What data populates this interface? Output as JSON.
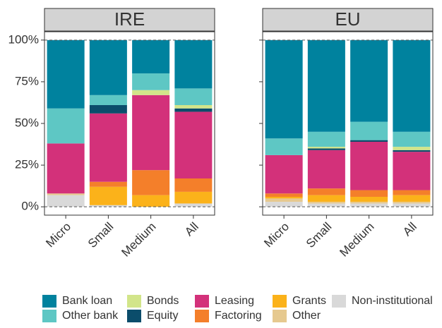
{
  "chart_data": {
    "type": "stacked_bar",
    "facets": [
      "IRE",
      "EU"
    ],
    "categories": [
      "Micro",
      "Small",
      "Medium",
      "All"
    ],
    "ylim": [
      -5,
      105
    ],
    "yticks": [
      {
        "value": 0,
        "label": "0%"
      },
      {
        "value": 25,
        "label": "25%"
      },
      {
        "value": 50,
        "label": "50%"
      },
      {
        "value": 75,
        "label": "75%"
      },
      {
        "value": 100,
        "label": "100%"
      }
    ],
    "hlines": [
      0,
      100
    ],
    "series": [
      {
        "name": "Non-institutional",
        "color": "#d9d9d9",
        "values": [
          [
            7,
            1,
            0,
            2
          ],
          [
            3,
            2,
            2,
            2
          ]
        ]
      },
      {
        "name": "Other",
        "color": "#e6c98f",
        "values": [
          [
            1,
            0,
            0,
            0
          ],
          [
            2,
            1,
            1,
            1
          ]
        ]
      },
      {
        "name": "Grants",
        "color": "#fbb21a",
        "values": [
          [
            0,
            11,
            7,
            7
          ],
          [
            1,
            4,
            3,
            4
          ]
        ]
      },
      {
        "name": "Factoring",
        "color": "#f47f2a",
        "values": [
          [
            0,
            3,
            15,
            8
          ],
          [
            2,
            4,
            4,
            3
          ]
        ]
      },
      {
        "name": "Leasing",
        "color": "#d3317a",
        "values": [
          [
            30,
            41,
            45,
            40
          ],
          [
            23,
            23,
            29,
            23
          ]
        ]
      },
      {
        "name": "Equity",
        "color": "#0b4d6b",
        "values": [
          [
            0,
            5,
            0,
            2
          ],
          [
            0,
            1,
            1,
            1
          ]
        ]
      },
      {
        "name": "Bonds",
        "color": "#d2e58a",
        "values": [
          [
            0,
            0,
            3,
            2
          ],
          [
            0,
            1,
            0,
            2
          ]
        ]
      },
      {
        "name": "Other bank",
        "color": "#5ec7c4",
        "values": [
          [
            21,
            6,
            10,
            10
          ],
          [
            10,
            9,
            11,
            9
          ]
        ]
      },
      {
        "name": "Bank loan",
        "color": "#00829e",
        "values": [
          [
            41,
            33,
            20,
            29
          ],
          [
            59,
            55,
            49,
            55
          ]
        ]
      }
    ]
  }
}
